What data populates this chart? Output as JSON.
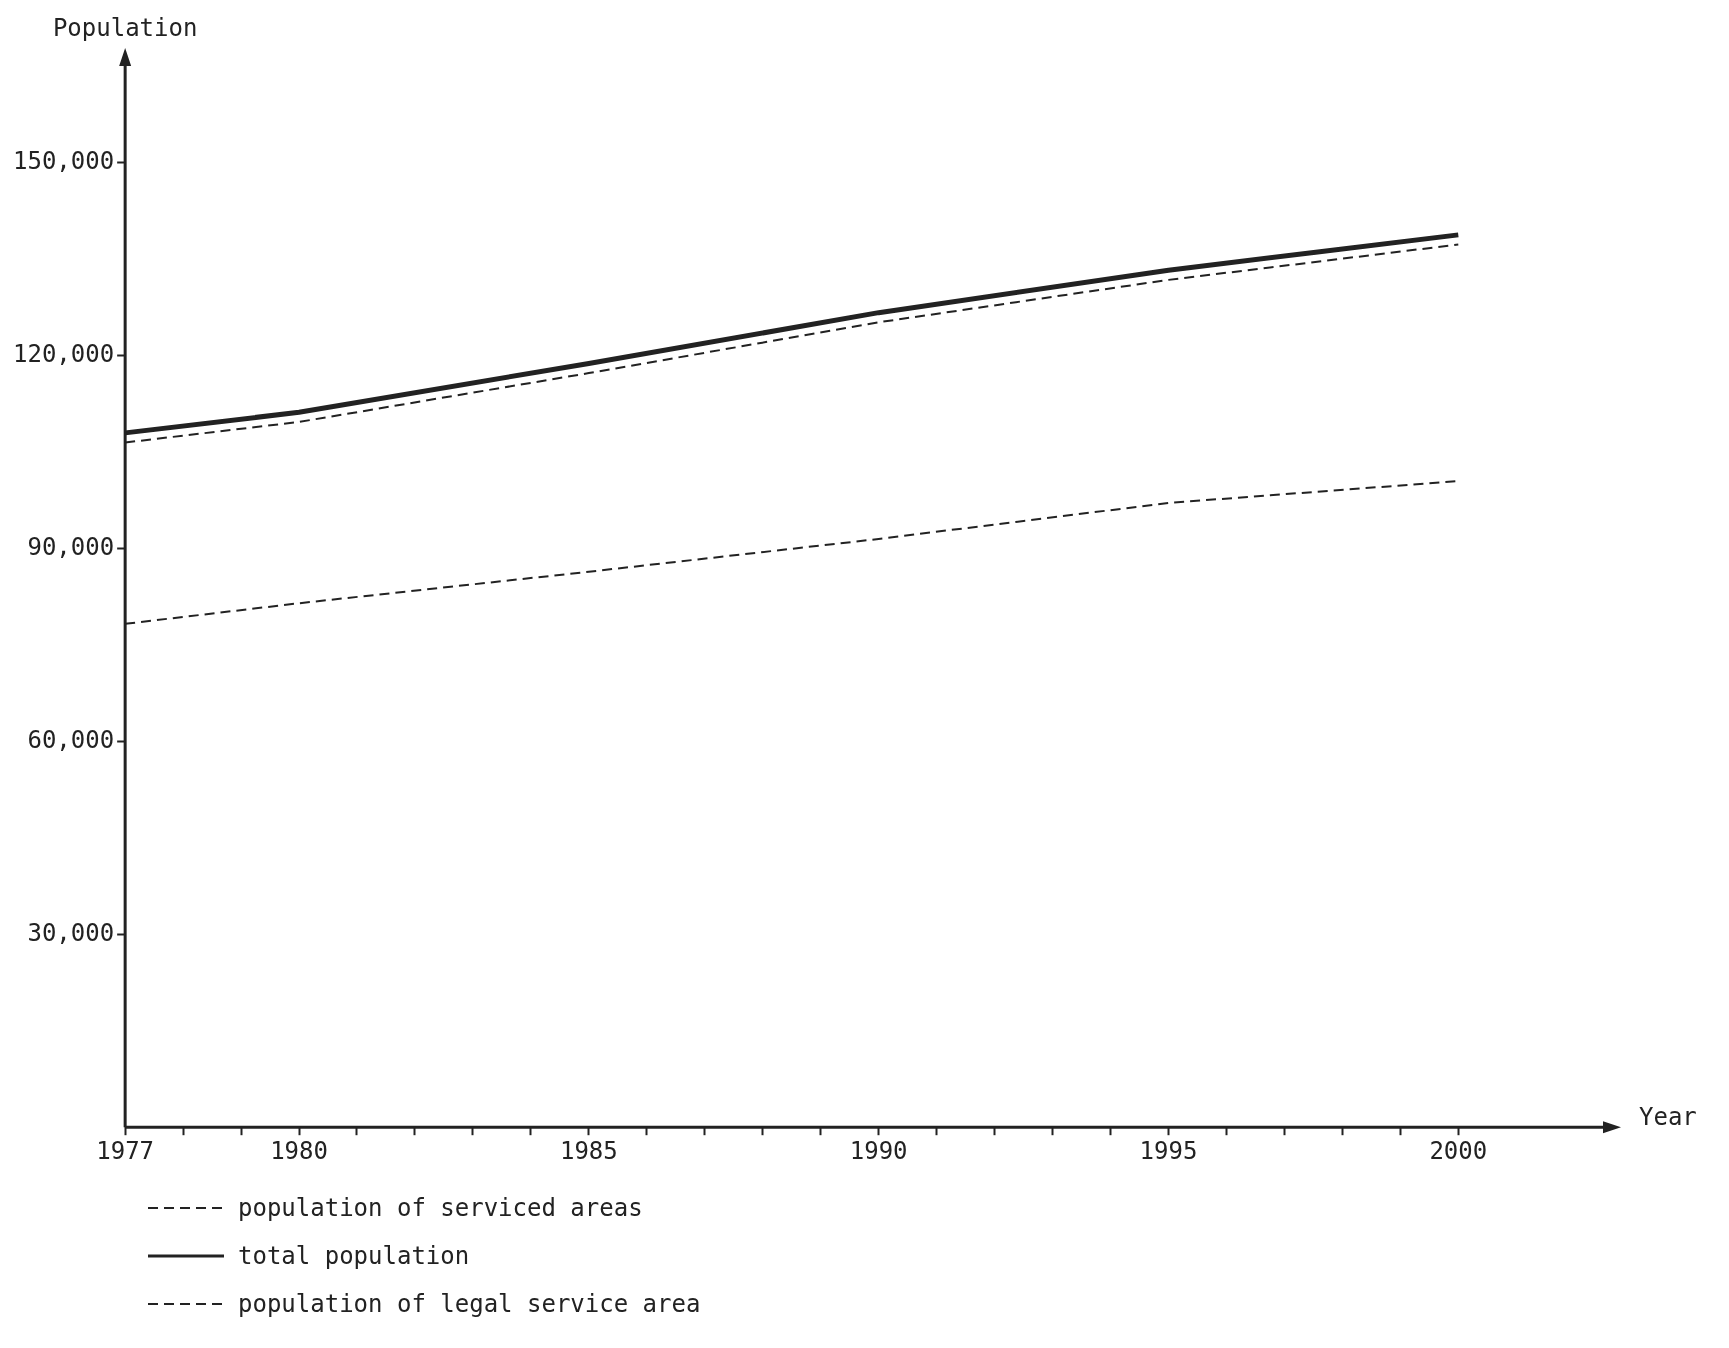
{
  "chart_data": {
    "type": "line",
    "xlabel": "Year",
    "ylabel": "Population",
    "x": [
      1977,
      1980,
      1985,
      1990,
      1995,
      2000
    ],
    "series": [
      {
        "name": "population of serviced areas",
        "color": "#222222",
        "line_style": "dashed",
        "values": [
          78300,
          81500,
          86400,
          91500,
          97100,
          100500
        ]
      },
      {
        "name": "total population",
        "color": "#222222",
        "line_style": "solid",
        "values": [
          108000,
          111200,
          118800,
          126700,
          133300,
          138800
        ]
      },
      {
        "name": "population of legal service area",
        "color": "#222222",
        "line_style": "dashed",
        "values": [
          106500,
          109700,
          117300,
          125200,
          131800,
          137300
        ]
      }
    ],
    "xlim": [
      1977,
      2002.6
    ],
    "xticks": [
      1977,
      {
        "value": 1978,
        "label": null
      },
      {
        "value": 1979,
        "label": null
      },
      1980,
      {
        "value": 1981,
        "label": null
      },
      {
        "value": 1982,
        "label": null
      },
      {
        "value": 1983,
        "label": null
      },
      {
        "value": 1984,
        "label": null
      },
      1985,
      {
        "value": 1986,
        "label": null
      },
      {
        "value": 1987,
        "label": null
      },
      {
        "value": 1988,
        "label": null
      },
      {
        "value": 1989,
        "label": null
      },
      1990,
      {
        "value": 1991,
        "label": null
      },
      {
        "value": 1992,
        "label": null
      },
      {
        "value": 1993,
        "label": null
      },
      {
        "value": 1994,
        "label": null
      },
      1995,
      {
        "value": 1996,
        "label": null
      },
      {
        "value": 1997,
        "label": null
      },
      {
        "value": 1998,
        "label": null
      },
      {
        "value": 1999,
        "label": null
      },
      2000
    ],
    "ylim": [
      0,
      166000
    ],
    "yticks": [
      {
        "value": 30000,
        "label": "30,000"
      },
      {
        "value": 60000,
        "label": "60,000"
      },
      {
        "value": 90000,
        "label": "90,000"
      },
      {
        "value": 120000,
        "label": "120,000"
      },
      {
        "value": 150000,
        "label": "150,000"
      }
    ],
    "grid": false,
    "legend": "bottom"
  }
}
